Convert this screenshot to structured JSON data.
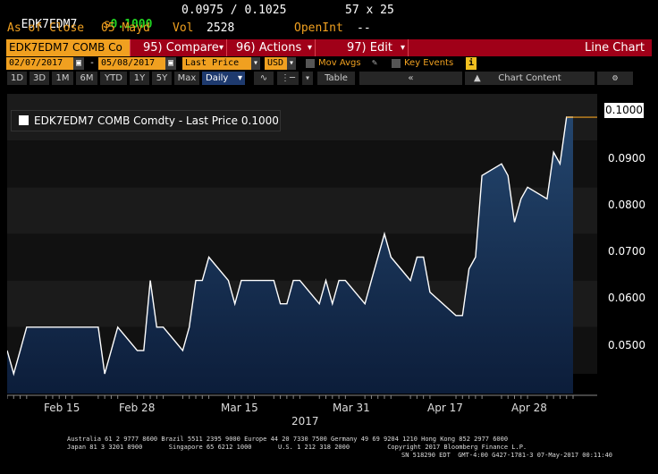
{
  "header": {
    "ticker": "EDK7EDM7",
    "last_prefix": "s",
    "last_value": "0.1000",
    "bid_ask": "0.0975 / 0.1025",
    "size": "57 x 25",
    "as_of_label": "As of Close",
    "as_of_date": "05 Mayd",
    "vol_label": "Vol",
    "vol_value": "2528",
    "openint_label": "OpenInt",
    "openint_value": "--"
  },
  "tabs": {
    "security_field": "EDK7EDM7 COMB Co",
    "compare_num": "95)",
    "compare_label": "Compare",
    "actions_num": "96)",
    "actions_label": "Actions",
    "edit_num": "97)",
    "edit_label": "Edit",
    "view_title": "Line Chart"
  },
  "controls": {
    "start_date": "02/07/2017",
    "end_date": "05/08/2017",
    "price_field": "Last Price",
    "currency": "USD",
    "mov_avgs_label": "Mov Avgs",
    "key_events_label": "Key Events"
  },
  "toolbar": {
    "ranges": [
      "1D",
      "3D",
      "1M",
      "6M",
      "YTD",
      "1Y",
      "5Y",
      "Max"
    ],
    "frequency": "Daily",
    "table_label": "Table",
    "chart_content_label": "Chart Content"
  },
  "legend": {
    "text": "EDK7EDM7 COMB Comdty - Last Price 0.1000"
  },
  "last_price_tag": "0.1000",
  "y_ticks": [
    "0.0900",
    "0.0800",
    "0.0700",
    "0.0600",
    "0.0500"
  ],
  "x_ticks": [
    "Feb 15",
    "Feb 28",
    "Mar 15",
    "Mar 31",
    "Apr 17",
    "Apr 28"
  ],
  "x_year": "2017",
  "footer": {
    "line1": "Australia 61 2 9777 8600 Brazil 5511 2395 9000 Europe 44 20 7330 7500 Germany 49 69 9204 1210 Hong Kong 852 2977 6000",
    "line2": "Japan 81 3 3201 8900       Singapore 65 6212 1000       U.S. 1 212 318 2000          Copyright 2017 Bloomberg Finance L.P.",
    "line3": "SN 518290 EDT  GMT-4:00 G427-1781-3 07-May-2017 00:11:40"
  },
  "colors": {
    "accent_amber": "#f0a020",
    "bar_red": "#a00018",
    "line": "#ffffff",
    "area_top": "#24466e",
    "area_bottom": "#0c1d3a",
    "last_price_marker": "#f0a020"
  },
  "chart_data": {
    "type": "area",
    "title": "",
    "xlabel": "2017",
    "ylabel": "",
    "ylim": [
      0.0425,
      0.1025
    ],
    "y_ticks": [
      0.05,
      0.06,
      0.07,
      0.08,
      0.09,
      0.1
    ],
    "x_tick_labels": [
      "Feb 15",
      "Feb 28",
      "Mar 15",
      "Mar 31",
      "Apr 17",
      "Apr 28"
    ],
    "series": [
      {
        "name": "EDK7EDM7 COMB Comdty - Last Price",
        "x": [
          "2017-02-07",
          "2017-02-08",
          "2017-02-09",
          "2017-02-10",
          "2017-02-13",
          "2017-02-14",
          "2017-02-15",
          "2017-02-16",
          "2017-02-17",
          "2017-02-21",
          "2017-02-22",
          "2017-02-23",
          "2017-02-24",
          "2017-02-27",
          "2017-02-28",
          "2017-03-01",
          "2017-03-02",
          "2017-03-03",
          "2017-03-06",
          "2017-03-07",
          "2017-03-08",
          "2017-03-09",
          "2017-03-10",
          "2017-03-13",
          "2017-03-14",
          "2017-03-15",
          "2017-03-16",
          "2017-03-17",
          "2017-03-20",
          "2017-03-21",
          "2017-03-22",
          "2017-03-23",
          "2017-03-24",
          "2017-03-27",
          "2017-03-28",
          "2017-03-29",
          "2017-03-30",
          "2017-03-31",
          "2017-04-03",
          "2017-04-04",
          "2017-04-05",
          "2017-04-06",
          "2017-04-07",
          "2017-04-10",
          "2017-04-11",
          "2017-04-12",
          "2017-04-13",
          "2017-04-17",
          "2017-04-18",
          "2017-04-19",
          "2017-04-20",
          "2017-04-21",
          "2017-04-24",
          "2017-04-25",
          "2017-04-26",
          "2017-04-27",
          "2017-04-28",
          "2017-05-01",
          "2017-05-02",
          "2017-05-03",
          "2017-05-04",
          "2017-05-05"
        ],
        "values": [
          0.05,
          0.045,
          0.05,
          0.055,
          0.055,
          0.055,
          0.055,
          0.055,
          0.055,
          0.055,
          0.045,
          0.05,
          0.055,
          0.05,
          0.05,
          0.065,
          0.055,
          0.055,
          0.05,
          0.055,
          0.065,
          0.065,
          0.07,
          0.065,
          0.06,
          0.065,
          0.065,
          0.065,
          0.065,
          0.06,
          0.06,
          0.065,
          0.065,
          0.06,
          0.065,
          0.06,
          0.065,
          0.065,
          0.06,
          0.065,
          0.07,
          0.075,
          0.07,
          0.065,
          0.07,
          0.07,
          0.0625,
          0.0575,
          0.0575,
          0.0675,
          0.07,
          0.0875,
          0.09,
          0.0875,
          0.0775,
          0.0825,
          0.085,
          0.0825,
          0.0925,
          0.09,
          0.1,
          0.1
        ]
      }
    ],
    "grid": true,
    "legend": "top-left"
  }
}
